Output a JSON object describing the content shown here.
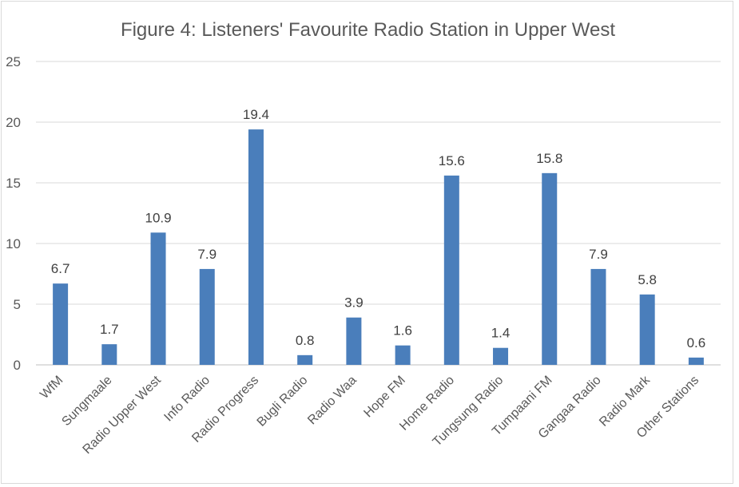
{
  "chart_data": {
    "type": "bar",
    "title": "Figure 4: Listeners' Favourite Radio Station in Upper West",
    "xlabel": "",
    "ylabel": "",
    "ylim": [
      0,
      25
    ],
    "yticks": [
      0,
      5,
      10,
      15,
      20,
      25
    ],
    "grid": true,
    "bar_color": "#4a7ebb",
    "categories": [
      "WfM",
      "Sungmaale",
      "Radio Upper West",
      "Info Radio",
      "Radio Progress",
      "Bugli Radio",
      "Radio Waa",
      "Hope FM",
      "Home Radio",
      "Tungsung Radio",
      "Tumpaani FM",
      "Gangaa Radio",
      "Radio Mark",
      "Other Stations"
    ],
    "values": [
      6.7,
      1.7,
      10.9,
      7.9,
      19.4,
      0.8,
      3.9,
      1.6,
      15.6,
      1.4,
      15.8,
      7.9,
      5.8,
      0.6
    ]
  }
}
